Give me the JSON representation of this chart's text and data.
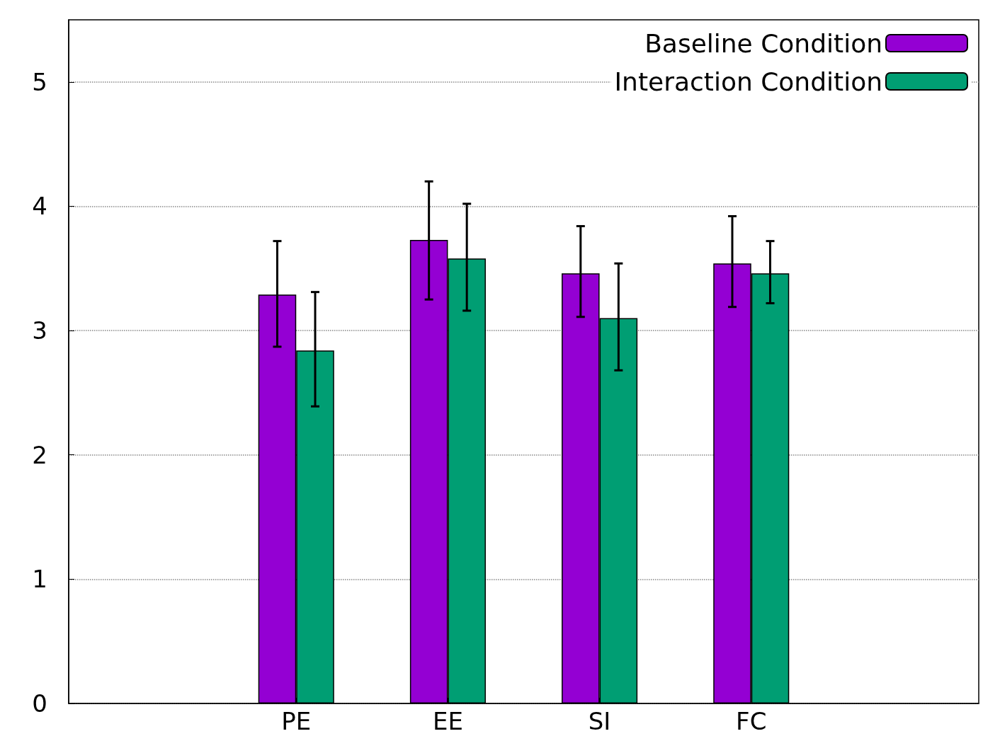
{
  "chart_data": {
    "type": "bar",
    "categories": [
      null,
      "PE",
      "EE",
      "SI",
      "FC",
      null
    ],
    "series": [
      {
        "name": "Baseline Condition",
        "color": "#9400d3",
        "values": [
          null,
          3.29,
          3.73,
          3.46,
          3.54,
          null
        ],
        "errors": [
          null,
          [
            2.87,
            3.72
          ],
          [
            3.25,
            4.2
          ],
          [
            3.11,
            3.84
          ],
          [
            3.19,
            3.92
          ],
          null
        ]
      },
      {
        "name": "Interaction Condition",
        "color": "#009e73",
        "values": [
          null,
          2.84,
          3.58,
          3.1,
          3.46,
          null
        ],
        "errors": [
          null,
          [
            2.39,
            3.31
          ],
          [
            3.16,
            4.02
          ],
          [
            2.68,
            3.54
          ],
          [
            3.22,
            3.72
          ],
          null
        ]
      }
    ],
    "ylim": [
      0,
      5.5
    ],
    "yticks": [
      0,
      1,
      2,
      3,
      4,
      5
    ],
    "grid": "y",
    "legend": "top right"
  }
}
